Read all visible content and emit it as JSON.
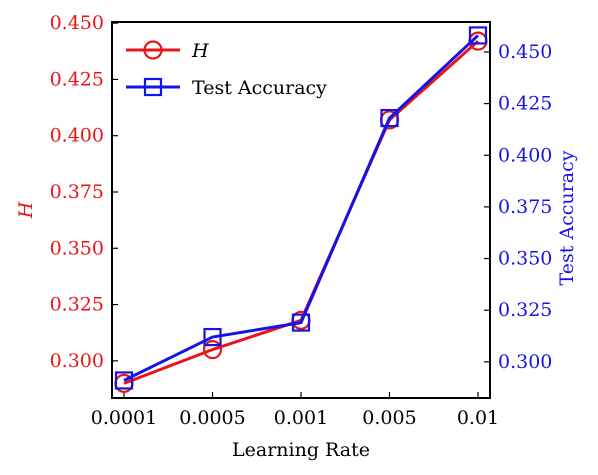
{
  "chart_data": {
    "type": "line",
    "categories": [
      "0.0001",
      "0.0005",
      "0.001",
      "0.005",
      "0.01"
    ],
    "xlabel": "Learning Rate",
    "series": [
      {
        "name": "H",
        "axis": "left",
        "marker": "circle",
        "color": "#e8141a",
        "values": [
          0.29,
          0.305,
          0.318,
          0.407,
          0.442
        ]
      },
      {
        "name": "Test Accuracy",
        "axis": "right",
        "marker": "square",
        "color": "#1414e6",
        "values": [
          0.291,
          0.312,
          0.319,
          0.418,
          0.458
        ]
      }
    ],
    "y_left": {
      "label": "H",
      "color": "#e8141a",
      "ylim": [
        0.2835,
        0.4505
      ],
      "ticks": [
        "0.300",
        "0.325",
        "0.350",
        "0.375",
        "0.400",
        "0.425",
        "0.450"
      ]
    },
    "y_right": {
      "label": "Test Accuracy",
      "color": "#1414e6",
      "ylim": [
        0.2825,
        0.4645
      ],
      "ticks": [
        "0.300",
        "0.325",
        "0.350",
        "0.375",
        "0.400",
        "0.425",
        "0.450"
      ]
    },
    "legend": {
      "placement": "upper-left"
    },
    "grid": false
  }
}
